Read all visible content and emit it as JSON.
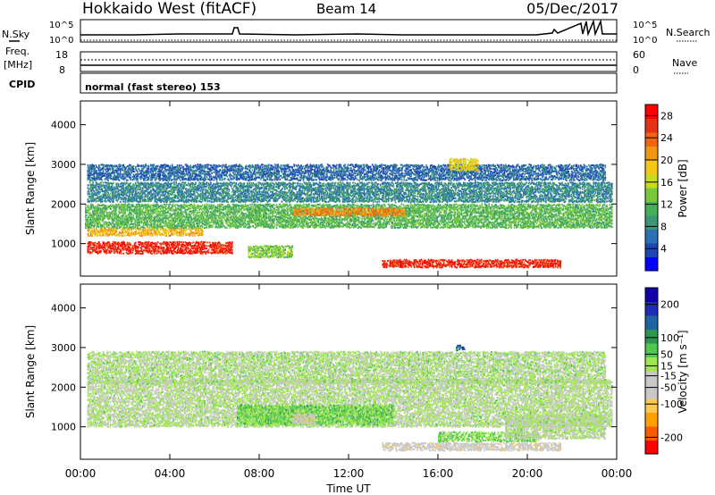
{
  "header": {
    "station": "Hokkaido West (fitACF)",
    "beam": "Beam 14",
    "date": "05/Dec/2017"
  },
  "ops": {
    "nsky_label": "N.Sky",
    "nsky_ticks": [
      "10^5",
      "10^0"
    ],
    "nsearch_label": "N.Search",
    "nsearch_ticks": [
      "10^5",
      "10^0"
    ],
    "freq_label_1": "Freq.",
    "freq_label_2": "[MHz]",
    "freq_ticks": [
      "18",
      "8"
    ],
    "nave_label": "Nave",
    "nave_ticks": [
      "60",
      "0"
    ],
    "cpid_label": "CPID",
    "cpid_text": "normal (fast stereo) 153"
  },
  "xlabel": "Time UT",
  "colors": {
    "power": [
      "#0000ff",
      "#1e46b4",
      "#2d6eb4",
      "#3c9678",
      "#46af5a",
      "#78c83c",
      "#c8dc1e",
      "#f5c814",
      "#f09614",
      "#f06414",
      "#e63214",
      "#ff0000"
    ],
    "velocity": [
      "#ff0000",
      "#ff5a00",
      "#ffa000",
      "#ffc850",
      "#c8c8c8",
      "#c8c8c8",
      "#a0e650",
      "#50c850",
      "#2d9650",
      "#1e64a0",
      "#1e2db4",
      "#1400aa"
    ]
  },
  "chart_data": [
    {
      "type": "heatmap",
      "panel": "power",
      "ylabel": "Slant Range [km]",
      "xlim": [
        "00:00",
        "24:00"
      ],
      "ylim": [
        180,
        4600
      ],
      "x_ticks": [
        "00:00",
        "04:00",
        "08:00",
        "12:00",
        "16:00",
        "20:00",
        "00:00"
      ],
      "y_ticks": [
        1000,
        2000,
        3000,
        4000
      ],
      "colorbar": {
        "label": "Power [dB]",
        "ticks": [
          4,
          8,
          12,
          16,
          20,
          24,
          28
        ],
        "range": [
          0,
          30
        ]
      },
      "echo_bands": [
        {
          "time_start": 0.3,
          "time_end": 6.8,
          "range_center": 900,
          "range_width": 300,
          "value": 27
        },
        {
          "time_start": 0.3,
          "time_end": 5.5,
          "range_center": 1300,
          "range_width": 200,
          "value": 20
        },
        {
          "time_start": 0.2,
          "time_end": 23.8,
          "range_center": 1700,
          "range_width": 600,
          "value": 12
        },
        {
          "time_start": 0.3,
          "time_end": 23.8,
          "range_center": 2300,
          "range_width": 500,
          "value": 8
        },
        {
          "time_start": 0.3,
          "time_end": 23.5,
          "range_center": 2800,
          "range_width": 400,
          "value": 6
        },
        {
          "time_start": 9.5,
          "time_end": 14.5,
          "range_center": 1800,
          "range_width": 200,
          "value": 22
        },
        {
          "time_start": 13.5,
          "time_end": 21.5,
          "range_center": 500,
          "range_width": 200,
          "value": 27
        },
        {
          "time_start": 7.5,
          "time_end": 9.5,
          "range_center": 800,
          "range_width": 300,
          "value": 14
        },
        {
          "time_start": 16.5,
          "time_end": 17.8,
          "range_center": 3000,
          "range_width": 300,
          "value": 18
        }
      ]
    },
    {
      "type": "heatmap",
      "panel": "velocity",
      "ylabel": "Slant Range [km]",
      "xlim": [
        "00:00",
        "24:00"
      ],
      "ylim": [
        180,
        4600
      ],
      "x_ticks": [
        "00:00",
        "04:00",
        "08:00",
        "12:00",
        "16:00",
        "20:00",
        "00:00"
      ],
      "y_ticks": [
        1000,
        2000,
        3000,
        4000
      ],
      "colorbar": {
        "label": "Velocity [m s⁻¹]",
        "ticks": [
          -200,
          -100,
          -50,
          -15,
          15,
          50,
          100,
          200
        ],
        "range": [
          -250,
          250
        ]
      },
      "echo_bands": [
        {
          "time_start": 0.3,
          "time_end": 23.8,
          "range_center": 1600,
          "range_width": 1200,
          "value": 0
        },
        {
          "time_start": 0.3,
          "time_end": 23.5,
          "range_center": 2500,
          "range_width": 800,
          "value": 5
        },
        {
          "time_start": 7.0,
          "time_end": 14.0,
          "range_center": 1300,
          "range_width": 500,
          "value": 45
        },
        {
          "time_start": 9.5,
          "time_end": 10.5,
          "range_center": 1200,
          "range_width": 250,
          "value": -60
        },
        {
          "time_start": 13.5,
          "time_end": 21.5,
          "range_center": 500,
          "range_width": 200,
          "value": -50
        },
        {
          "time_start": 16.0,
          "time_end": 20.5,
          "range_center": 750,
          "range_width": 250,
          "value": 40
        },
        {
          "time_start": 19.0,
          "time_end": 23.5,
          "range_center": 1000,
          "range_width": 600,
          "value": 0
        },
        {
          "time_start": 16.8,
          "time_end": 17.2,
          "range_center": 3000,
          "range_width": 120,
          "value": 150
        }
      ]
    }
  ]
}
